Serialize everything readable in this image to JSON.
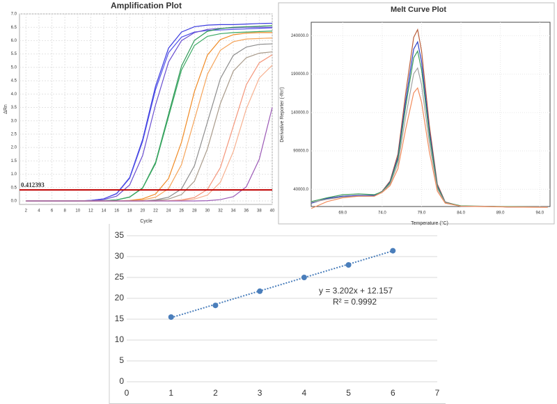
{
  "chart_data": [
    {
      "type": "line",
      "title": "Amplification Plot",
      "xlabel": "Cycle",
      "ylabel": "ΔRn",
      "x": [
        2,
        4,
        6,
        8,
        10,
        12,
        14,
        16,
        18,
        20,
        22,
        24,
        26,
        28,
        30,
        32,
        34,
        36,
        38,
        40
      ],
      "xlim": [
        1,
        40
      ],
      "xticks": [
        2,
        4,
        6,
        8,
        10,
        12,
        14,
        16,
        18,
        20,
        22,
        24,
        26,
        28,
        30,
        32,
        34,
        36,
        38,
        40
      ],
      "ylim": [
        -0.13,
        7.0
      ],
      "yticks": [
        {
          "value": 0,
          "label": "0.0"
        },
        {
          "value": 0.5,
          "label": "0.5"
        },
        {
          "value": 1,
          "label": "1.0"
        },
        {
          "value": 1.5,
          "label": "1.5"
        },
        {
          "value": 2,
          "label": "2.0"
        },
        {
          "value": 2.5,
          "label": "2.5"
        },
        {
          "value": 3,
          "label": "3.0"
        },
        {
          "value": 3.5,
          "label": "3.5"
        },
        {
          "value": 4,
          "label": "4.0"
        },
        {
          "value": 4.5,
          "label": "4.5"
        },
        {
          "value": 5,
          "label": "5.0"
        },
        {
          "value": 5.5,
          "label": "5.5"
        },
        {
          "value": 6,
          "label": "6.0"
        },
        {
          "value": 6.5,
          "label": "6.5"
        },
        {
          "value": 7,
          "label": "7.0"
        }
      ],
      "grid": true,
      "threshold": 0.412393,
      "threshold_color": "#c00000",
      "series": [
        {
          "color": "#3a3adf",
          "values": [
            0,
            0,
            0,
            0,
            0,
            0.02,
            0.08,
            0.28,
            0.88,
            2.3,
            4.3,
            5.72,
            6.32,
            6.52,
            6.58,
            6.6,
            6.6,
            6.62,
            6.64,
            6.65
          ]
        },
        {
          "color": "#5050e8",
          "values": [
            0,
            0,
            0,
            0,
            0,
            0.02,
            0.08,
            0.27,
            0.85,
            2.23,
            4.17,
            5.55,
            6.13,
            6.32,
            6.38,
            6.4,
            6.42,
            6.44,
            6.46,
            6.48
          ]
        },
        {
          "color": "#6a4fd0",
          "values": [
            0,
            0,
            0,
            0,
            0,
            0.01,
            0.05,
            0.18,
            0.6,
            1.7,
            3.6,
            5.2,
            6.0,
            6.3,
            6.42,
            6.46,
            6.48,
            6.5,
            6.5,
            6.5
          ]
        },
        {
          "color": "#2e9a57",
          "values": [
            0,
            0,
            0,
            0,
            0,
            0,
            0.01,
            0.04,
            0.15,
            0.49,
            1.45,
            3.25,
            5.05,
            6.01,
            6.35,
            6.45,
            6.5,
            6.52,
            6.54,
            6.56
          ]
        },
        {
          "color": "#3aa862",
          "values": [
            0,
            0,
            0,
            0,
            0,
            0,
            0.01,
            0.04,
            0.14,
            0.48,
            1.4,
            3.15,
            4.9,
            5.82,
            6.16,
            6.26,
            6.3,
            6.32,
            6.34,
            6.36
          ]
        },
        {
          "color": "#f08a24",
          "values": [
            0,
            0,
            0,
            0,
            0,
            0,
            0,
            0,
            0.02,
            0.08,
            0.26,
            0.84,
            2.2,
            4.1,
            5.46,
            6.04,
            6.22,
            6.28,
            6.3,
            6.3
          ]
        },
        {
          "color": "#f5a45a",
          "values": [
            0,
            0,
            0,
            0,
            0,
            0,
            0,
            0,
            0.01,
            0.04,
            0.14,
            0.46,
            1.36,
            3.05,
            4.74,
            5.64,
            5.96,
            6.06,
            6.08,
            6.1
          ]
        },
        {
          "color": "#8c8c8c",
          "values": [
            0,
            0,
            0,
            0,
            0,
            0,
            0,
            0,
            0,
            0,
            0.04,
            0.14,
            0.45,
            1.32,
            2.95,
            4.58,
            5.45,
            5.76,
            5.86,
            5.88
          ]
        },
        {
          "color": "#a89a8a",
          "values": [
            0,
            0,
            0,
            0,
            0,
            0,
            0,
            0,
            0,
            0,
            0.02,
            0.07,
            0.24,
            0.74,
            1.95,
            3.65,
            4.86,
            5.36,
            5.53,
            5.58
          ]
        },
        {
          "color": "#f4967a",
          "values": [
            0,
            0,
            0,
            0,
            0,
            0,
            0,
            0,
            0,
            0,
            0,
            0.01,
            0.04,
            0.13,
            0.43,
            1.25,
            2.8,
            4.35,
            5.17,
            5.47
          ]
        },
        {
          "color": "#f7b08f",
          "values": [
            0,
            0,
            0,
            0,
            0,
            0,
            0,
            0,
            0,
            0,
            0,
            0,
            0.02,
            0.07,
            0.22,
            0.7,
            1.85,
            3.45,
            4.6,
            5.08
          ]
        },
        {
          "color": "#9b59b6",
          "values": [
            0,
            0,
            0,
            0,
            0,
            0,
            0,
            0,
            0,
            0,
            0,
            0,
            0,
            0,
            0.01,
            0.05,
            0.16,
            0.53,
            1.56,
            3.5
          ]
        }
      ]
    },
    {
      "type": "line",
      "title": "Melt Curve Plot",
      "xlabel": "Temperature (°C)",
      "ylabel": "Derivative Reporter (-Rn')",
      "x": [
        65,
        67,
        69,
        71,
        73,
        74,
        75,
        76,
        77,
        78,
        78.5,
        79,
        80,
        81,
        82,
        84,
        87,
        90,
        95
      ],
      "xlim": [
        65,
        95.3
      ],
      "xticks": [
        {
          "value": 69,
          "label": "69.0"
        },
        {
          "value": 74,
          "label": "74.0"
        },
        {
          "value": 79,
          "label": "79.0"
        },
        {
          "value": 84,
          "label": "84.0"
        },
        {
          "value": 89,
          "label": "89.0"
        },
        {
          "value": 94,
          "label": "94.0"
        }
      ],
      "ylim": [
        17600,
        257600
      ],
      "yticks": [
        {
          "value": 40000,
          "label": "40000.0"
        },
        {
          "value": 90000,
          "label": "90000.0"
        },
        {
          "value": 140000,
          "label": "140000.0"
        },
        {
          "value": 190000,
          "label": "190000.0"
        },
        {
          "value": 240000,
          "label": "240000.0"
        }
      ],
      "grid": true,
      "series": [
        {
          "color": "#b85c38",
          "values": [
            22000,
            28000,
            31000,
            32000,
            32000,
            37500,
            50800,
            85800,
            166300,
            237900,
            248000,
            220200,
            122400,
            46800,
            23500,
            18000,
            18000,
            17000,
            17000
          ]
        },
        {
          "color": "#2b3fc4",
          "values": [
            22000,
            28000,
            31000,
            32000,
            32000,
            37100,
            49600,
            81800,
            156300,
            222700,
            232000,
            206200,
            115200,
            44800,
            23100,
            18000,
            18000,
            17000,
            17000
          ]
        },
        {
          "color": "#3a9a5a",
          "values": [
            24000,
            29000,
            33000,
            34000,
            33000,
            36900,
            48600,
            78800,
            148900,
            211300,
            220000,
            195600,
            109800,
            43400,
            22900,
            18500,
            18000,
            17500,
            17000
          ]
        },
        {
          "color": "#a0a0a0",
          "values": [
            23000,
            27000,
            30000,
            31000,
            31000,
            36500,
            46800,
            73300,
            135300,
            190400,
            198000,
            176200,
            99900,
            40800,
            22500,
            18000,
            18000,
            17000,
            17000
          ]
        },
        {
          "color": "#f28b5b",
          "values": [
            15000,
            24000,
            29000,
            31000,
            31000,
            35900,
            44800,
            66800,
            119100,
            165700,
            172000,
            153400,
            88200,
            37600,
            21900,
            18000,
            17500,
            17000,
            16500
          ]
        }
      ]
    },
    {
      "type": "scatter",
      "x": [
        1,
        2,
        3,
        4,
        5,
        6
      ],
      "values": [
        15.5,
        18.3,
        21.7,
        25,
        28,
        31.4
      ],
      "color": "#4a7ebb",
      "xlim": [
        0,
        7
      ],
      "xticks": [
        0,
        1,
        2,
        3,
        4,
        5,
        6,
        7
      ],
      "ylim": [
        0,
        35
      ],
      "yticks": [
        0,
        5,
        10,
        15,
        20,
        25,
        30,
        35
      ],
      "grid": true,
      "trendline": {
        "slope": 3.202,
        "intercept": 12.157
      },
      "annotations": [
        "y = 3.202x + 12.157",
        "R² = 0.9992"
      ]
    }
  ]
}
